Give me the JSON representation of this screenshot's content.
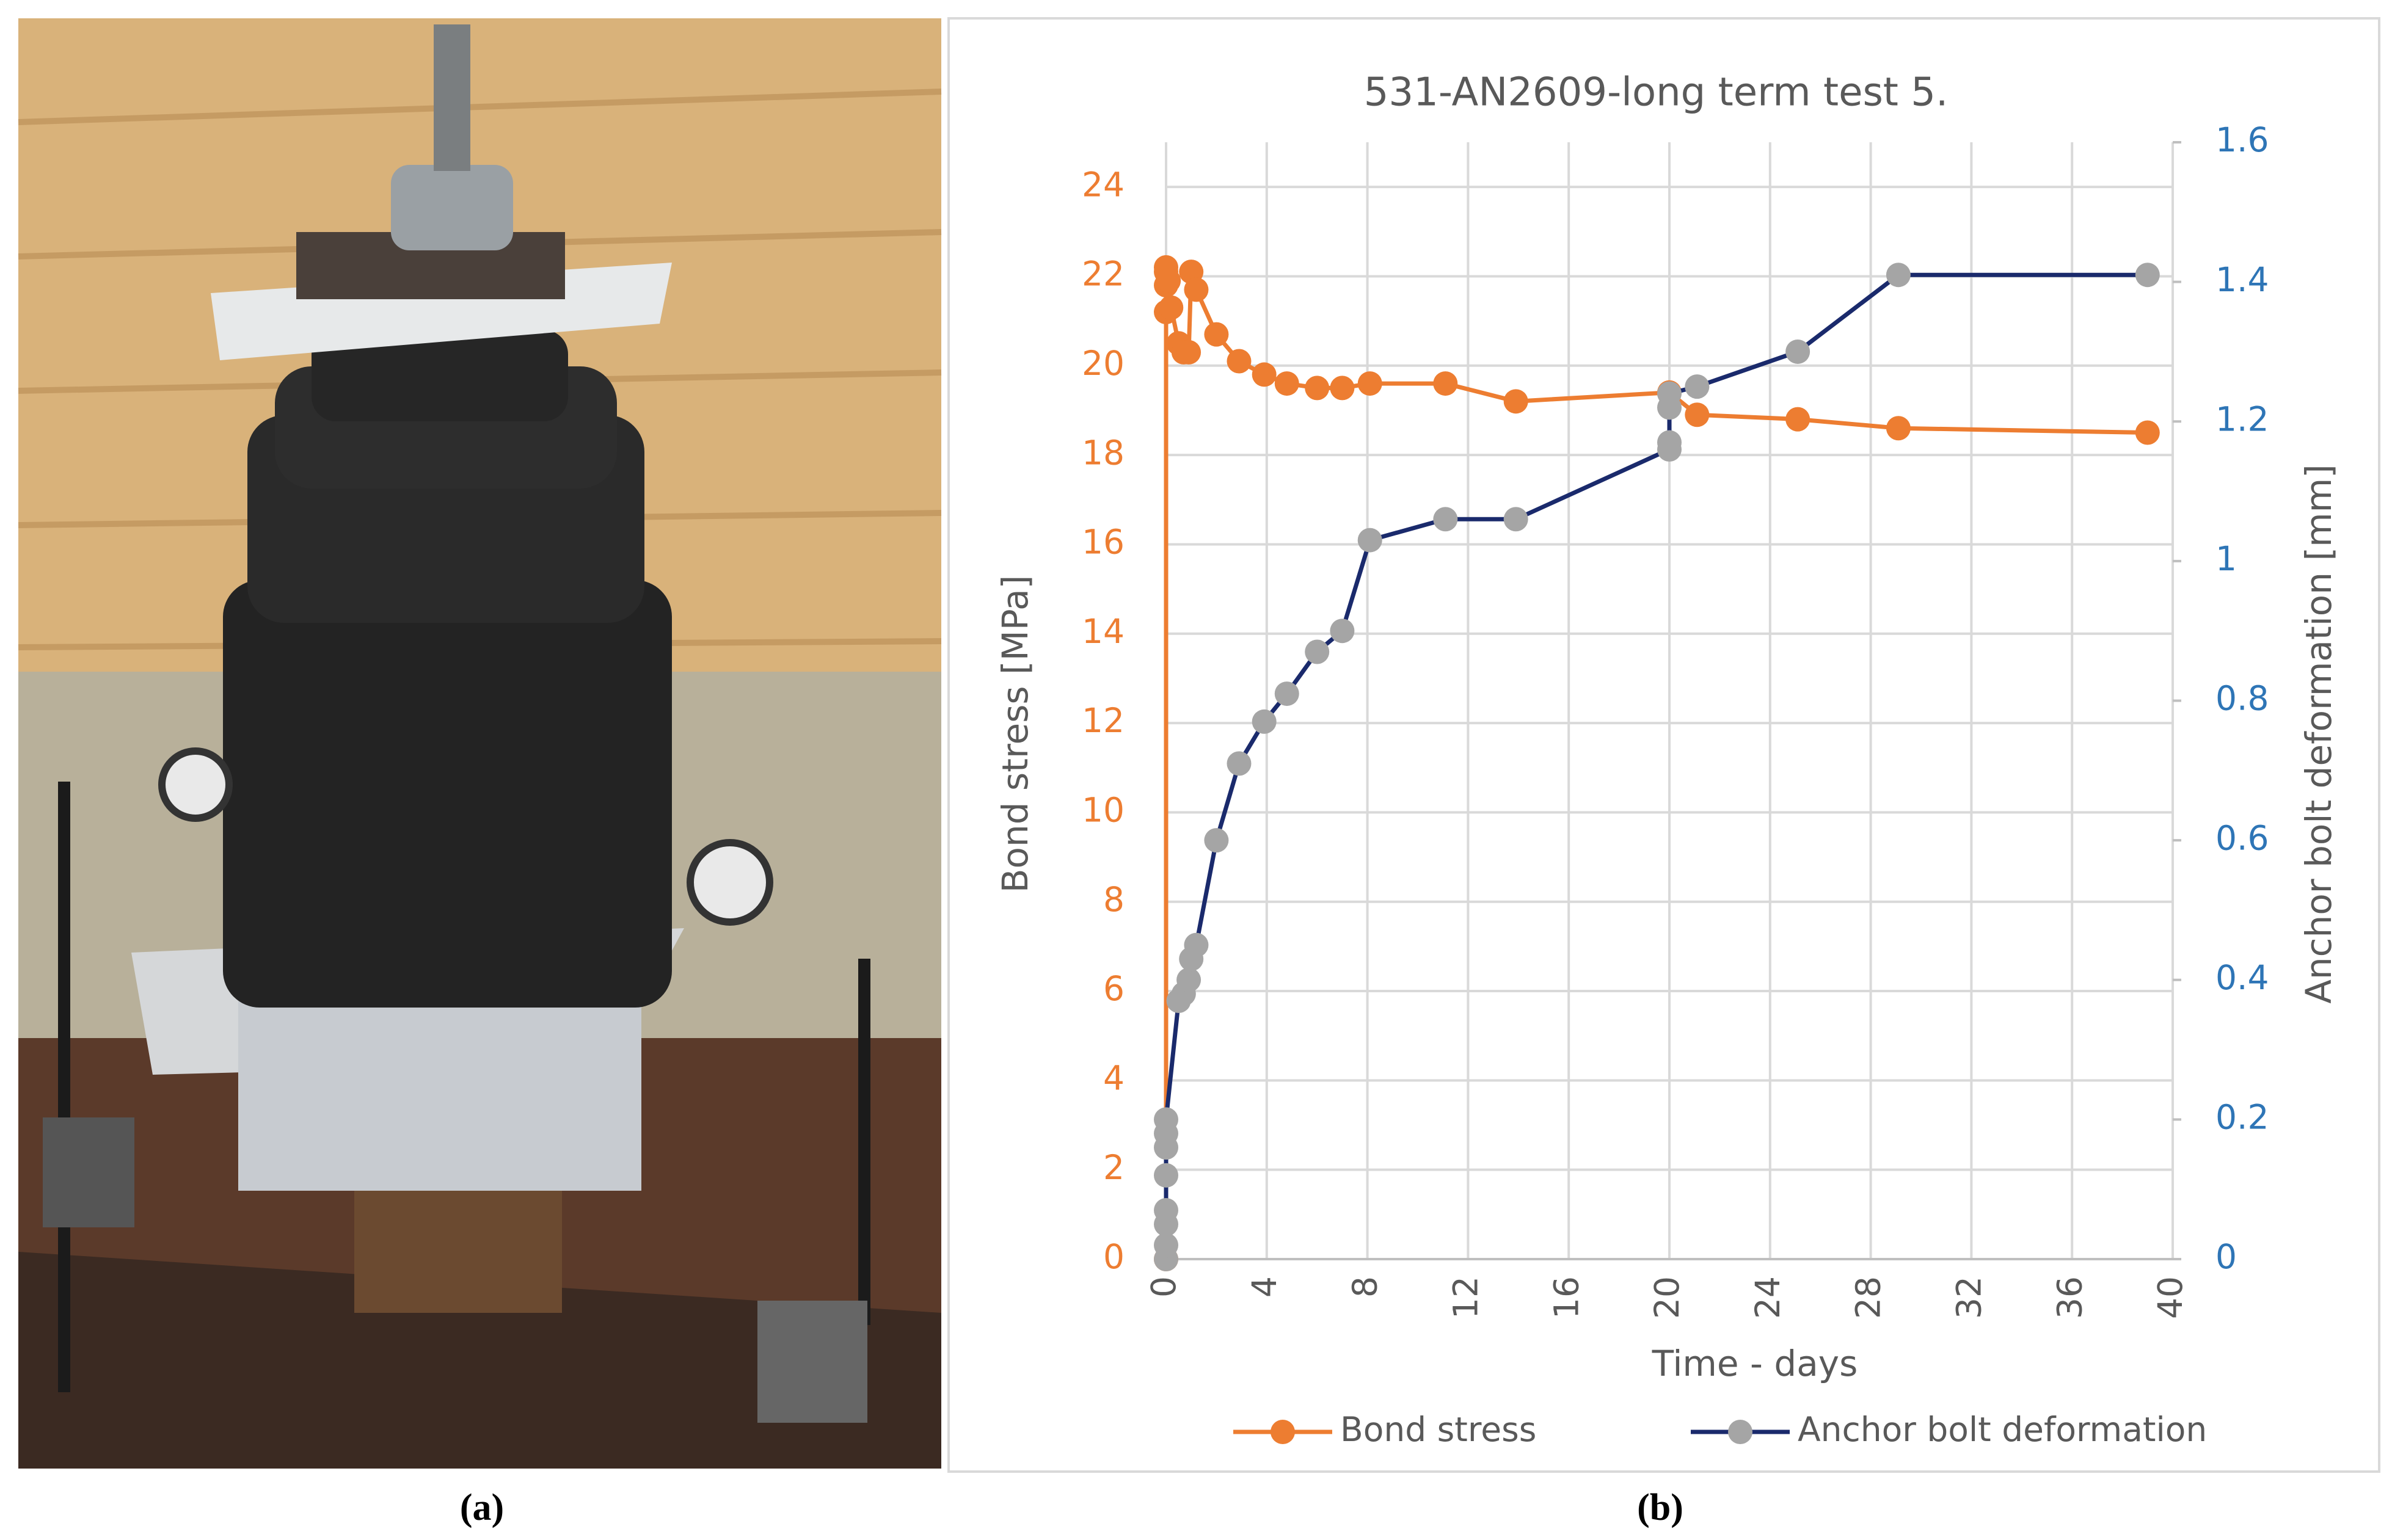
{
  "captions": [
    "(a)",
    "(b)"
  ],
  "chart_data": {
    "type": "line",
    "title": "531-AN2609-long term test 5.",
    "x_label": "Time - days",
    "y_label": "Bond stress [MPa]",
    "y2_label": "Anchor bolt deformation [mm]",
    "xlim": [
      0,
      40
    ],
    "xticks": [
      0,
      4,
      8,
      12,
      16,
      20,
      24,
      28,
      32,
      36,
      40
    ],
    "ylim": [
      0,
      25
    ],
    "yticks": [
      0,
      2,
      4,
      6,
      8,
      10,
      12,
      14,
      16,
      18,
      20,
      22,
      24
    ],
    "y2lim": [
      0,
      1.6
    ],
    "y2ticks": [
      0,
      0.2,
      0.4,
      0.6,
      0.8,
      1,
      1.2,
      1.4,
      1.6
    ],
    "grid": true,
    "legend": "bottom",
    "series": [
      {
        "name": "Bond stress",
        "color": "#ed7d31",
        "marker_color": "#ed7d31",
        "axis": "y",
        "x": [
          0,
          0,
          0,
          0,
          0,
          0.1,
          0.2,
          0.5,
          0.7,
          0.9,
          1.0,
          1.2,
          2.0,
          2.9,
          3.9,
          4.8,
          6.0,
          7.0,
          8.1,
          11.1,
          13.9,
          20.0,
          21.1,
          25.1,
          29.1,
          39.0
        ],
        "values": [
          0,
          21.2,
          21.8,
          22.1,
          22.2,
          21.9,
          21.3,
          20.5,
          20.3,
          20.3,
          22.1,
          21.7,
          20.7,
          20.1,
          19.8,
          19.6,
          19.5,
          19.5,
          19.6,
          19.6,
          19.2,
          19.4,
          18.9,
          18.8,
          18.6,
          18.5
        ]
      },
      {
        "name": "Anchor bolt deformation",
        "color": "#1a2a6c",
        "marker_color": "#a5a5a5",
        "axis": "y2",
        "x": [
          0,
          0,
          0,
          0,
          0,
          0,
          0,
          0,
          0.5,
          0.7,
          0.9,
          1.0,
          1.2,
          2.0,
          2.9,
          3.9,
          4.8,
          6.0,
          7.0,
          8.1,
          11.1,
          13.9,
          20.0,
          20.0,
          20.0,
          20.0,
          21.1,
          25.1,
          29.1,
          39.0
        ],
        "values": [
          0,
          0.02,
          0.05,
          0.07,
          0.12,
          0.16,
          0.18,
          0.2,
          0.37,
          0.38,
          0.4,
          0.43,
          0.45,
          0.6,
          0.71,
          0.77,
          0.81,
          0.87,
          0.9,
          1.03,
          1.06,
          1.06,
          1.16,
          1.17,
          1.22,
          1.24,
          1.25,
          1.3,
          1.41,
          1.41
        ]
      }
    ]
  }
}
